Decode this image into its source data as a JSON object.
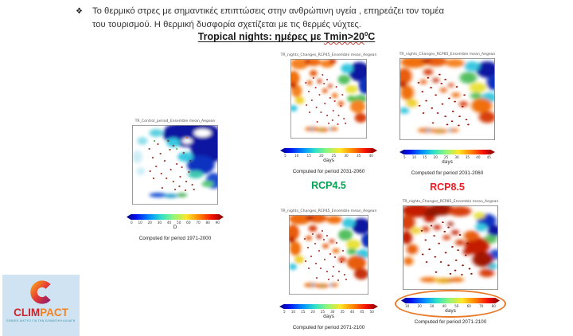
{
  "slide": {
    "bullet_glyph": "❖",
    "intro_text": "Το θερμικό στρες με σημαντικές επιπτώσεις στην ανθρώπινη υγεία , επηρεάζει τον τομέα του τουρισμού. Η θερμική  δυσφορία σχετίζεται με τις θερμές νύχτες.",
    "title": {
      "part1": "Tropical nights: ημέρες με ",
      "tmin": "Tmin>20",
      "sup": "0",
      "unit": "C"
    }
  },
  "panels": [
    {
      "id": "control",
      "title": "TR_Control_period_Ensemble mean_Aegean",
      "ticks": [
        "0",
        "10",
        "20",
        "30",
        "40",
        "50",
        "60",
        "70",
        "80",
        "90"
      ],
      "unit": "D",
      "caption": "Computed for period 1971-2000"
    },
    {
      "id": "rcp45-near",
      "title": "TR_nights_Changes_RCP45_Ensemble mean_Aegean",
      "ticks": [
        "5",
        "10",
        "15",
        "20",
        "25",
        "30",
        "35",
        "40"
      ],
      "unit": "days",
      "caption": "Computed for period 2031-2060",
      "rcp_label": "RCP4.5",
      "rcp_color": "#00a651"
    },
    {
      "id": "rcp85-near",
      "title": "TR_nights_Changes_RCP85_Ensemble mean_Aegean",
      "ticks": [
        "5",
        "10",
        "15",
        "20",
        "25",
        "30",
        "35",
        "40",
        "45"
      ],
      "unit": "days",
      "caption": "Computed for period 2031-2060",
      "rcp_label": "RCP8.5",
      "rcp_color": "#ee1c25"
    },
    {
      "id": "rcp45-far",
      "title": "TR_nights_Changes_RCP45_Ensemble mean_Aegean",
      "ticks": [
        "5",
        "10",
        "15",
        "20",
        "25",
        "30",
        "35",
        "40",
        "45",
        "50"
      ],
      "unit": "days",
      "caption": "Computed for period 2071-2100"
    },
    {
      "id": "rcp85-far",
      "title": "TR_nights_Changes_RCP85_Ensemble mean_Aegean",
      "ticks": [
        "10",
        "20",
        "30",
        "40",
        "50",
        "60",
        "70",
        "80"
      ],
      "unit": "days",
      "caption": "Computed for period 2071-2100",
      "highlight": "orange-ellipse-around-colorbar"
    }
  ],
  "logo": {
    "clim": "CLIM",
    "pact": "PACT",
    "tagline": "ΕΘΝΙΚΟ ΔΙΚΤΥΟ ΓΙΑ ΤΗΝ ΚΛΙΜΑΤΙΚΗ ΑΛΛΑΓΗ"
  },
  "colors": {
    "rcp45_green": "#00a651",
    "rcp85_red": "#ee1c25",
    "highlight_orange": "#e87b2a",
    "logo_background": "#cfe3f3",
    "clim_red": "#c9252c",
    "pact_orange": "#f5821f",
    "tagline_teal": "#2a8a9d"
  }
}
